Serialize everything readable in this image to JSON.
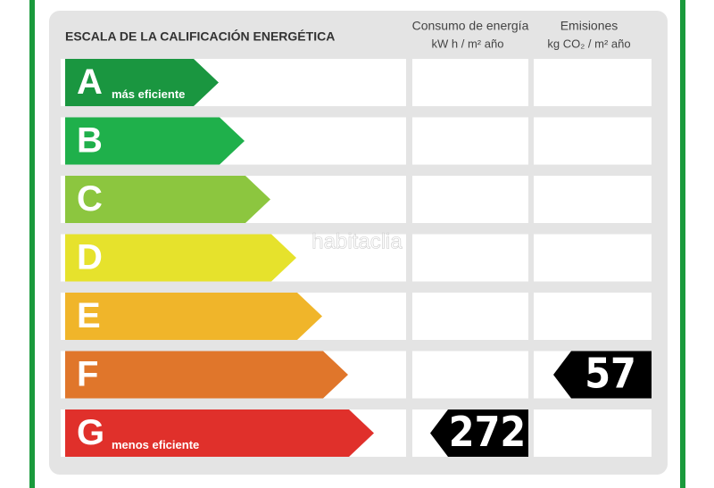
{
  "header": {
    "title": "ESCALA DE LA CALIFICACIÓN ENERGÉTICA",
    "consumption_title": "Consumo de energía",
    "consumption_unit": "kW h  / m² año",
    "emissions_title": "Emisiones",
    "emissions_unit": "kg CO₂  / m² año"
  },
  "watermark": "habitaclia",
  "rows": [
    {
      "letter": "A",
      "note": "más eficiente",
      "color": "#1a9640"
    },
    {
      "letter": "B",
      "color": "#1fb04b"
    },
    {
      "letter": "C",
      "color": "#8cc63f"
    },
    {
      "letter": "D",
      "color": "#e6e22c"
    },
    {
      "letter": "E",
      "color": "#f0b52a"
    },
    {
      "letter": "F",
      "color": "#e0762b",
      "emissions": 57
    },
    {
      "letter": "G",
      "note": "menos eficiente",
      "color": "#e0302b",
      "consumption": 272
    }
  ]
}
